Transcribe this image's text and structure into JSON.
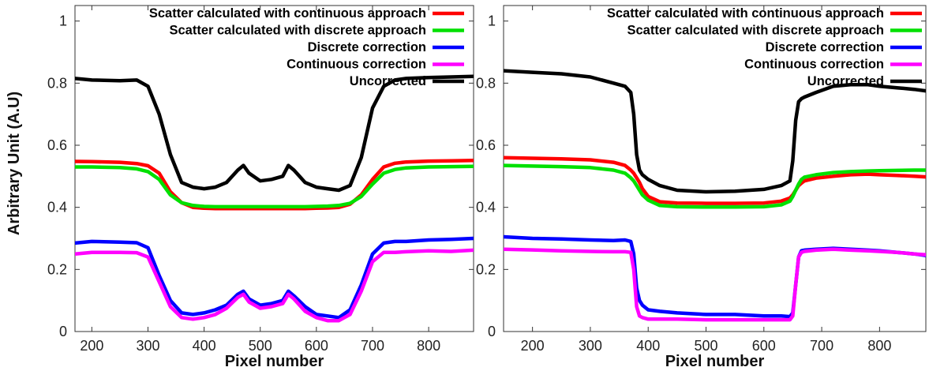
{
  "figure": {
    "ylabel": "Arbitrary Unit (A.U)"
  },
  "chart_data": [
    {
      "type": "line",
      "xlabel": "Pixel number",
      "ylabel": "Arbitrary Unit (A.U)",
      "xlim": [
        170,
        880
      ],
      "ylim": [
        0,
        1.05
      ],
      "xticks": [
        200,
        300,
        400,
        500,
        600,
        700,
        800
      ],
      "yticks": [
        0,
        0.2,
        0.4,
        0.6,
        0.8,
        1
      ],
      "ytick_labels": [
        "0",
        "0.2",
        "0.4",
        "0.6",
        "0.8",
        "1"
      ],
      "grid": false,
      "legend_position": "top-right",
      "x": [
        170,
        200,
        250,
        280,
        300,
        320,
        340,
        360,
        380,
        400,
        420,
        440,
        460,
        470,
        480,
        500,
        520,
        540,
        550,
        560,
        580,
        600,
        620,
        640,
        660,
        680,
        700,
        720,
        740,
        760,
        800,
        840,
        880
      ],
      "series": [
        {
          "name": "Scatter calculated with continuous approach",
          "color": "#ff0000",
          "values": [
            0.548,
            0.547,
            0.545,
            0.541,
            0.534,
            0.51,
            0.45,
            0.415,
            0.4,
            0.397,
            0.396,
            0.396,
            0.396,
            0.396,
            0.396,
            0.396,
            0.396,
            0.396,
            0.396,
            0.396,
            0.396,
            0.397,
            0.398,
            0.4,
            0.41,
            0.44,
            0.49,
            0.53,
            0.542,
            0.546,
            0.549,
            0.55,
            0.551
          ]
        },
        {
          "name": "Scatter calculated with discrete approach",
          "color": "#00e000",
          "values": [
            0.53,
            0.53,
            0.528,
            0.524,
            0.515,
            0.49,
            0.44,
            0.415,
            0.406,
            0.403,
            0.402,
            0.402,
            0.402,
            0.402,
            0.402,
            0.402,
            0.402,
            0.402,
            0.402,
            0.402,
            0.402,
            0.403,
            0.404,
            0.406,
            0.413,
            0.435,
            0.475,
            0.51,
            0.522,
            0.527,
            0.53,
            0.531,
            0.532
          ]
        },
        {
          "name": "Discrete correction",
          "color": "#0000ff",
          "values": [
            0.285,
            0.29,
            0.288,
            0.286,
            0.27,
            0.18,
            0.1,
            0.06,
            0.055,
            0.06,
            0.07,
            0.085,
            0.12,
            0.13,
            0.105,
            0.085,
            0.09,
            0.1,
            0.13,
            0.115,
            0.08,
            0.055,
            0.05,
            0.045,
            0.07,
            0.15,
            0.25,
            0.285,
            0.29,
            0.29,
            0.295,
            0.297,
            0.3
          ]
        },
        {
          "name": "Continuous correction",
          "color": "#ff00ff",
          "values": [
            0.25,
            0.255,
            0.255,
            0.254,
            0.24,
            0.16,
            0.08,
            0.045,
            0.04,
            0.045,
            0.055,
            0.075,
            0.11,
            0.12,
            0.095,
            0.075,
            0.08,
            0.09,
            0.12,
            0.105,
            0.065,
            0.045,
            0.035,
            0.035,
            0.055,
            0.13,
            0.225,
            0.255,
            0.255,
            0.257,
            0.26,
            0.258,
            0.262
          ]
        },
        {
          "name": "Uncorrected",
          "color": "#000000",
          "values": [
            0.815,
            0.81,
            0.808,
            0.81,
            0.79,
            0.7,
            0.57,
            0.48,
            0.465,
            0.46,
            0.465,
            0.48,
            0.52,
            0.535,
            0.51,
            0.485,
            0.49,
            0.5,
            0.535,
            0.52,
            0.48,
            0.465,
            0.46,
            0.455,
            0.47,
            0.56,
            0.72,
            0.79,
            0.81,
            0.815,
            0.818,
            0.82,
            0.822
          ]
        }
      ]
    },
    {
      "type": "line",
      "xlabel": "Pixel number",
      "ylabel": "",
      "xlim": [
        150,
        880
      ],
      "ylim": [
        0,
        1.05
      ],
      "xticks": [
        200,
        300,
        400,
        500,
        600,
        700,
        800
      ],
      "yticks": [
        0,
        0.2,
        0.4,
        0.6,
        0.8,
        1
      ],
      "ytick_labels": [
        "0",
        "0.2",
        "0.4",
        "0.6",
        "0.8",
        "1"
      ],
      "grid": false,
      "legend_position": "top-right",
      "x": [
        150,
        200,
        250,
        300,
        340,
        360,
        370,
        375,
        380,
        385,
        390,
        400,
        420,
        450,
        500,
        550,
        600,
        630,
        645,
        650,
        655,
        660,
        665,
        670,
        690,
        720,
        750,
        780,
        800,
        830,
        860,
        880
      ],
      "series": [
        {
          "name": "Scatter calculated with continuous approach",
          "color": "#ff0000",
          "values": [
            0.56,
            0.558,
            0.556,
            0.553,
            0.545,
            0.535,
            0.52,
            0.51,
            0.495,
            0.48,
            0.46,
            0.435,
            0.418,
            0.414,
            0.413,
            0.413,
            0.414,
            0.42,
            0.43,
            0.44,
            0.455,
            0.47,
            0.478,
            0.485,
            0.494,
            0.5,
            0.505,
            0.507,
            0.505,
            0.503,
            0.5,
            0.498
          ]
        },
        {
          "name": "Scatter calculated with discrete approach",
          "color": "#00e000",
          "values": [
            0.535,
            0.533,
            0.531,
            0.528,
            0.52,
            0.51,
            0.495,
            0.485,
            0.47,
            0.455,
            0.44,
            0.423,
            0.406,
            0.402,
            0.401,
            0.401,
            0.402,
            0.408,
            0.42,
            0.435,
            0.455,
            0.475,
            0.49,
            0.497,
            0.505,
            0.512,
            0.515,
            0.517,
            0.518,
            0.519,
            0.52,
            0.52
          ]
        },
        {
          "name": "Discrete correction",
          "color": "#0000ff",
          "values": [
            0.305,
            0.3,
            0.298,
            0.295,
            0.293,
            0.295,
            0.29,
            0.25,
            0.14,
            0.1,
            0.085,
            0.07,
            0.065,
            0.06,
            0.055,
            0.055,
            0.05,
            0.05,
            0.048,
            0.06,
            0.15,
            0.24,
            0.26,
            0.262,
            0.265,
            0.268,
            0.265,
            0.262,
            0.26,
            0.255,
            0.25,
            0.245
          ]
        },
        {
          "name": "Continuous correction",
          "color": "#ff00ff",
          "values": [
            0.265,
            0.263,
            0.26,
            0.258,
            0.257,
            0.257,
            0.255,
            0.2,
            0.08,
            0.05,
            0.045,
            0.04,
            0.04,
            0.04,
            0.038,
            0.038,
            0.038,
            0.038,
            0.038,
            0.05,
            0.15,
            0.24,
            0.255,
            0.258,
            0.262,
            0.265,
            0.262,
            0.26,
            0.258,
            0.255,
            0.25,
            0.247
          ]
        },
        {
          "name": "Uncorrected",
          "color": "#000000",
          "values": [
            0.84,
            0.835,
            0.83,
            0.82,
            0.8,
            0.79,
            0.77,
            0.7,
            0.57,
            0.52,
            0.505,
            0.49,
            0.47,
            0.455,
            0.45,
            0.452,
            0.458,
            0.47,
            0.485,
            0.55,
            0.68,
            0.74,
            0.75,
            0.755,
            0.77,
            0.79,
            0.795,
            0.795,
            0.79,
            0.785,
            0.78,
            0.775
          ]
        }
      ]
    }
  ]
}
